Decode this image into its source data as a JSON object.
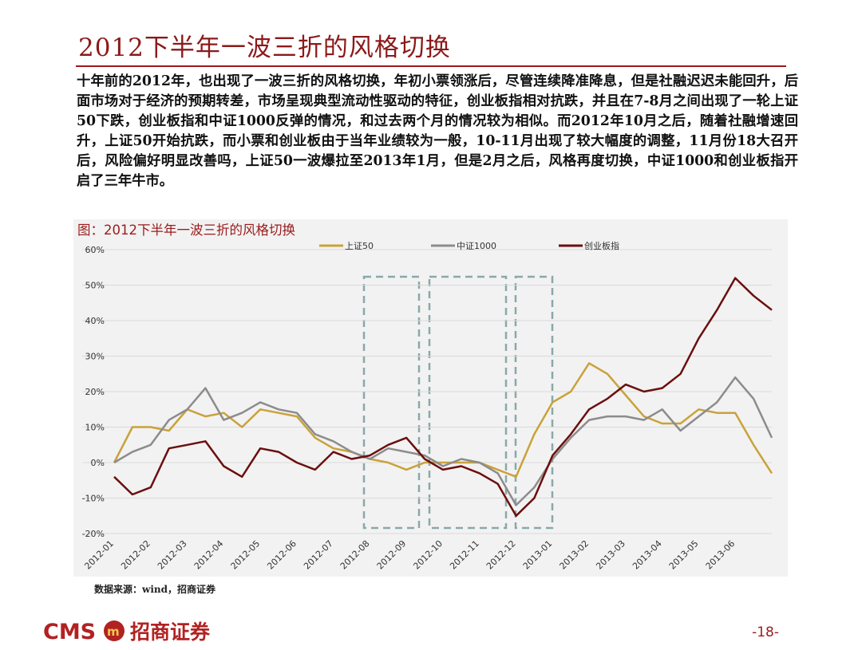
{
  "header": {
    "title": "2012下半年一波三折的风格切换"
  },
  "body": {
    "paragraph": "十年前的2012年，也出现了一波三折的风格切换，年初小票领涨后，尽管连续降准降息，但是社融迟迟未能回升，后面市场对于经济的预期转差，市场呈现典型流动性驱动的特征，创业板指相对抗跌，并且在7-8月之间出现了一轮上证50下跌，创业板指和中证1000反弹的情况，和过去两个月的情况较为相似。而2012年10月之后，随着社融增速回升，上证50开始抗跌，而小票和创业板由于当年业绩较为一般，10-11月出现了较大幅度的调整，11月份18大召开后，风险偏好明显改善吗，上证50一波爆拉至2013年1月，但是2月之后，风格再度切换，中证1000和创业板指开启了三年牛市。"
  },
  "chart_data": {
    "type": "line",
    "title": "图：2012下半年一波三折的风格切换",
    "categories": [
      "2012-01",
      null,
      "2012-02",
      null,
      "2012-03",
      null,
      "2012-04",
      null,
      "2012-05",
      null,
      "2012-06",
      null,
      "2012-07",
      null,
      "2012-08",
      null,
      "2012-09",
      null,
      "2012-10",
      null,
      "2012-11",
      null,
      "2012-12",
      null,
      "2013-01",
      null,
      "2013-02",
      null,
      "2013-03",
      null,
      "2013-04",
      null,
      "2013-05",
      null,
      "2013-06",
      null,
      null
    ],
    "series": [
      {
        "name": "上证50",
        "color": "#c9a23a",
        "values": [
          0,
          10,
          10,
          9,
          15,
          13,
          14,
          10,
          15,
          14,
          13,
          7,
          4,
          3,
          1,
          0,
          -2,
          0,
          0,
          0,
          0,
          -2,
          -4,
          8,
          17,
          20,
          28,
          25,
          19,
          13,
          11,
          11,
          15,
          14,
          14,
          5,
          -3
        ]
      },
      {
        "name": "中证1000",
        "color": "#8c8c8c",
        "values": [
          0,
          3,
          5,
          12,
          15,
          21,
          12,
          14,
          17,
          15,
          14,
          8,
          6,
          3,
          1,
          4,
          3,
          2,
          -1,
          1,
          0,
          -3,
          -12,
          -7,
          1,
          7,
          12,
          13,
          13,
          12,
          15,
          9,
          13,
          17,
          24,
          18,
          7
        ]
      },
      {
        "name": "创业板指",
        "color": "#6b0f0f",
        "values": [
          -4,
          -9,
          -7,
          4,
          5,
          6,
          -1,
          -4,
          4,
          3,
          0,
          -2,
          3,
          1,
          2,
          5,
          7,
          1,
          -2,
          -1,
          -3,
          -6,
          -15,
          -10,
          2,
          8,
          15,
          18,
          22,
          20,
          21,
          25,
          35,
          43,
          52,
          47,
          43
        ]
      }
    ],
    "ylim": [
      -20,
      60
    ],
    "yticks": [
      {
        "value": -20,
        "label": "-20%"
      },
      {
        "value": -10,
        "label": "-10%"
      },
      {
        "value": 0,
        "label": "0%"
      },
      {
        "value": 10,
        "label": "10%"
      },
      {
        "value": 20,
        "label": "20%"
      },
      {
        "value": 30,
        "label": "30%"
      },
      {
        "value": 40,
        "label": "40%"
      },
      {
        "value": 50,
        "label": "50%"
      },
      {
        "value": 60,
        "label": "60%"
      }
    ],
    "grid": true,
    "legend": "top"
  },
  "source": "数据来源：wind，招商证券",
  "footer": {
    "logo": "CMS",
    "brand": "招商证券",
    "page": "-18-"
  }
}
